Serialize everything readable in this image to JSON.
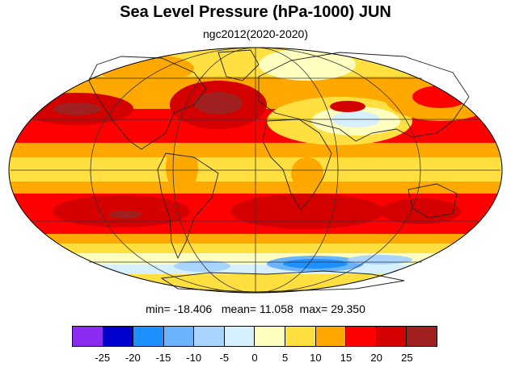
{
  "title": "Sea Level Pressure (hPa-1000) JUN",
  "subtitle": "ngc2012(2020-2020)",
  "stats": {
    "min_label": "min=",
    "min": "-18.406",
    "mean_label": "mean=",
    "mean": "11.058",
    "max_label": "max=",
    "max": "29.350"
  },
  "map": {
    "projection": "Mollweide",
    "grid": true,
    "coastlines": true
  },
  "colorbar": {
    "colors": [
      "#8c2af0",
      "#0000cd",
      "#1e90ff",
      "#6ab4ff",
      "#a8d4ff",
      "#d6f0ff",
      "#ffffc0",
      "#ffe040",
      "#ffa800",
      "#ff0000",
      "#d40000",
      "#a02020"
    ],
    "labels": [
      "-25",
      "-20",
      "-15",
      "-10",
      "-5",
      "0",
      "5",
      "10",
      "15",
      "20",
      "25"
    ]
  }
}
